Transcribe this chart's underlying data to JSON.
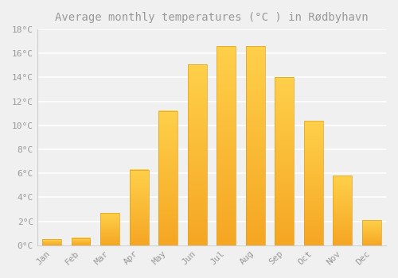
{
  "title": "Average monthly temperatures (°C ) in Rødbyhavn",
  "months": [
    "Jan",
    "Feb",
    "Mar",
    "Apr",
    "May",
    "Jun",
    "Jul",
    "Aug",
    "Sep",
    "Oct",
    "Nov",
    "Dec"
  ],
  "temperatures": [
    0.5,
    0.6,
    2.7,
    6.3,
    11.2,
    15.1,
    16.6,
    16.6,
    14.0,
    10.4,
    5.8,
    2.1
  ],
  "bar_color_bottom": "#F5A623",
  "bar_color_top": "#FFD04A",
  "background_color": "#F0F0F0",
  "grid_color": "#FFFFFF",
  "text_color": "#999999",
  "ylim": [
    0,
    18
  ],
  "yticks": [
    0,
    2,
    4,
    6,
    8,
    10,
    12,
    14,
    16,
    18
  ],
  "ytick_labels": [
    "0°C",
    "2°C",
    "4°C",
    "6°C",
    "8°C",
    "10°C",
    "12°C",
    "14°C",
    "16°C",
    "18°C"
  ],
  "title_fontsize": 10,
  "tick_fontsize": 8,
  "bar_width": 0.65
}
